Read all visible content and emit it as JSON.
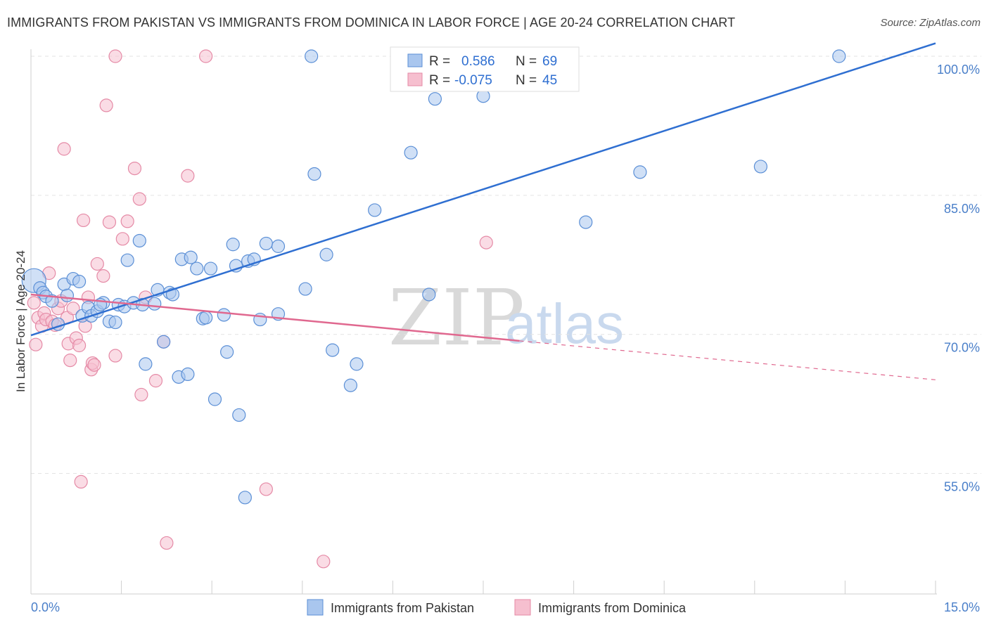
{
  "header": {
    "title": "IMMIGRANTS FROM PAKISTAN VS IMMIGRANTS FROM DOMINICA IN LABOR FORCE | AGE 20-24 CORRELATION CHART",
    "source": "Source: ZipAtlas.com"
  },
  "watermark": {
    "zip": "ZIP",
    "atlas": "atlas"
  },
  "colors": {
    "pakistan_fill": "#a9c6ee",
    "pakistan_stroke": "#5b8fd6",
    "pakistan_line": "#2f6fd1",
    "dominica_fill": "#f6bfcf",
    "dominica_stroke": "#e58aa6",
    "dominica_line": "#e0688f",
    "tick_text": "#4a7fc9",
    "grid": "#e3e3e3"
  },
  "chart_data": {
    "type": "scatter",
    "xlabel": "",
    "ylabel": "In Labor Force | Age 20-24",
    "xlim": [
      0,
      15
    ],
    "ylim": [
      42,
      101
    ],
    "x_ticks": [
      {
        "value": 0,
        "label": "0.0%"
      },
      {
        "value": 15,
        "label": "15.0%"
      }
    ],
    "y_ticks": [
      {
        "value": 55,
        "label": "55.0%"
      },
      {
        "value": 70,
        "label": "70.0%"
      },
      {
        "value": 85,
        "label": "85.0%"
      },
      {
        "value": 100,
        "label": "100.0%"
      }
    ],
    "grid": true,
    "legend_position": "bottom-center",
    "stats": [
      {
        "r_label": "R =",
        "r_value": "0.586",
        "n_label": "N =",
        "n_value": "69"
      },
      {
        "r_label": "R =",
        "r_value": "-0.075",
        "n_label": "N =",
        "n_value": "45"
      }
    ],
    "series": [
      {
        "name": "Immigrants from Pakistan",
        "trend": {
          "x": [
            0,
            15
          ],
          "y": [
            69.9,
            101.4
          ]
        },
        "points": [
          [
            0.05,
            75.8
          ],
          [
            0.15,
            75.0
          ],
          [
            0.2,
            74.5
          ],
          [
            0.25,
            74.1
          ],
          [
            0.35,
            73.6
          ],
          [
            0.45,
            71.1
          ],
          [
            0.55,
            75.4
          ],
          [
            0.6,
            74.2
          ],
          [
            0.7,
            76.0
          ],
          [
            0.8,
            75.7
          ],
          [
            0.85,
            72.0
          ],
          [
            0.95,
            72.9
          ],
          [
            1.0,
            72.0
          ],
          [
            1.1,
            72.5
          ],
          [
            1.2,
            73.4
          ],
          [
            1.3,
            71.4
          ],
          [
            1.4,
            71.3
          ],
          [
            1.45,
            73.2
          ],
          [
            1.55,
            73.0
          ],
          [
            1.6,
            78.0
          ],
          [
            1.7,
            73.4
          ],
          [
            1.8,
            80.1
          ],
          [
            1.85,
            73.2
          ],
          [
            1.9,
            66.8
          ],
          [
            2.05,
            73.3
          ],
          [
            2.1,
            74.8
          ],
          [
            2.2,
            69.2
          ],
          [
            2.3,
            74.5
          ],
          [
            2.35,
            74.3
          ],
          [
            2.45,
            65.4
          ],
          [
            2.6,
            65.7
          ],
          [
            2.5,
            78.1
          ],
          [
            2.65,
            78.3
          ],
          [
            2.75,
            77.1
          ],
          [
            2.85,
            71.7
          ],
          [
            2.9,
            71.8
          ],
          [
            2.98,
            77.1
          ],
          [
            3.05,
            63.0
          ],
          [
            3.2,
            72.1
          ],
          [
            3.25,
            68.1
          ],
          [
            3.35,
            79.7
          ],
          [
            3.4,
            77.4
          ],
          [
            3.45,
            61.3
          ],
          [
            3.55,
            52.4
          ],
          [
            3.6,
            77.9
          ],
          [
            3.7,
            78.1
          ],
          [
            3.8,
            71.6
          ],
          [
            3.9,
            79.8
          ],
          [
            4.1,
            79.5
          ],
          [
            4.1,
            72.2
          ],
          [
            4.55,
            74.9
          ],
          [
            4.65,
            100.0
          ],
          [
            4.7,
            87.3
          ],
          [
            4.9,
            78.6
          ],
          [
            5.0,
            68.3
          ],
          [
            5.3,
            64.5
          ],
          [
            5.4,
            66.8
          ],
          [
            5.7,
            83.4
          ],
          [
            6.3,
            89.6
          ],
          [
            6.6,
            74.3
          ],
          [
            6.7,
            95.4
          ],
          [
            7.0,
            100.0
          ],
          [
            7.3,
            100.0
          ],
          [
            7.5,
            95.7
          ],
          [
            10.1,
            87.5
          ],
          [
            9.2,
            82.1
          ],
          [
            12.1,
            88.1
          ],
          [
            13.4,
            100.0
          ],
          [
            1.15,
            73.2
          ]
        ]
      },
      {
        "name": "Immigrants from Dominica",
        "trend": {
          "x": [
            0,
            8.1
          ],
          "y": [
            74.3,
            69.3
          ]
        },
        "trend_dashed": {
          "x": [
            8.1,
            15
          ],
          "y": [
            69.3,
            65.1
          ]
        },
        "points": [
          [
            0.05,
            73.4
          ],
          [
            0.08,
            68.9
          ],
          [
            0.12,
            71.8
          ],
          [
            0.18,
            70.9
          ],
          [
            0.22,
            72.3
          ],
          [
            0.25,
            71.6
          ],
          [
            0.3,
            76.6
          ],
          [
            0.35,
            71.4
          ],
          [
            0.4,
            71.0
          ],
          [
            0.45,
            72.8
          ],
          [
            0.5,
            73.6
          ],
          [
            0.55,
            90.0
          ],
          [
            0.6,
            71.8
          ],
          [
            0.62,
            69.0
          ],
          [
            0.65,
            67.2
          ],
          [
            0.7,
            72.8
          ],
          [
            0.75,
            69.6
          ],
          [
            0.8,
            68.8
          ],
          [
            0.83,
            54.1
          ],
          [
            0.87,
            82.3
          ],
          [
            0.9,
            70.9
          ],
          [
            0.95,
            74.0
          ],
          [
            1.0,
            66.2
          ],
          [
            1.02,
            66.9
          ],
          [
            1.05,
            66.7
          ],
          [
            1.1,
            77.6
          ],
          [
            1.2,
            76.3
          ],
          [
            1.25,
            94.7
          ],
          [
            1.3,
            82.1
          ],
          [
            1.4,
            100.0
          ],
          [
            1.4,
            67.7
          ],
          [
            1.52,
            80.3
          ],
          [
            1.6,
            82.2
          ],
          [
            1.72,
            87.9
          ],
          [
            1.8,
            84.6
          ],
          [
            1.83,
            63.5
          ],
          [
            1.9,
            74.0
          ],
          [
            2.07,
            65.0
          ],
          [
            2.2,
            69.2
          ],
          [
            2.25,
            47.5
          ],
          [
            2.6,
            87.1
          ],
          [
            2.9,
            100.0
          ],
          [
            3.9,
            53.3
          ],
          [
            4.85,
            45.5
          ],
          [
            7.55,
            79.9
          ]
        ]
      }
    ]
  }
}
